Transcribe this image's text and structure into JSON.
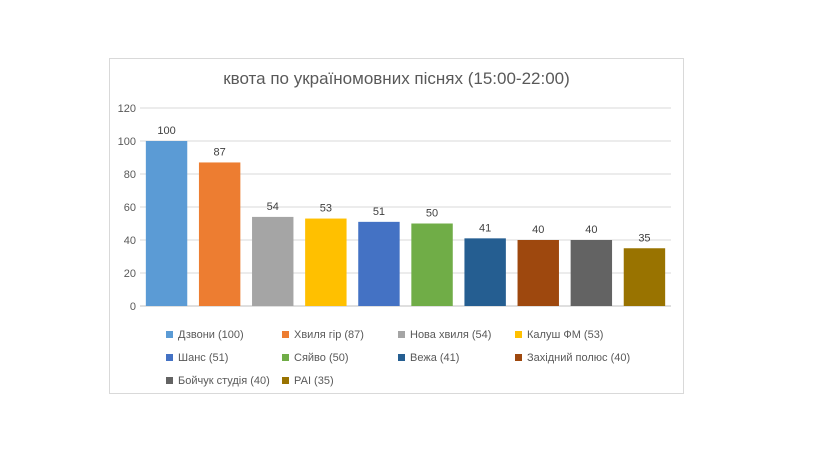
{
  "chart_data": {
    "type": "bar",
    "title": "квота по україномовних піснях (15:00-22:00)",
    "xlabel": "",
    "ylabel": "",
    "ylim": [
      0,
      120
    ],
    "yticks": [
      0,
      20,
      40,
      60,
      80,
      100,
      120
    ],
    "grid": true,
    "legend_position": "bottom",
    "categories": [
      "Дзвони (100)",
      "Хвиля гір (87)",
      "Нова хвиля (54)",
      "Калуш ФМ (53)",
      "Шанс (51)",
      "Сяйво (50)",
      "Вежа (41)",
      "Західний полюс (40)",
      "Бойчук студія (40)",
      "РАІ (35)"
    ],
    "values": [
      100,
      87,
      54,
      53,
      51,
      50,
      41,
      40,
      40,
      35
    ],
    "colors": [
      "#5b9bd5",
      "#ed7d31",
      "#a5a5a5",
      "#ffc000",
      "#4472c4",
      "#70ad47",
      "#255e91",
      "#9e480e",
      "#636363",
      "#997300"
    ]
  }
}
